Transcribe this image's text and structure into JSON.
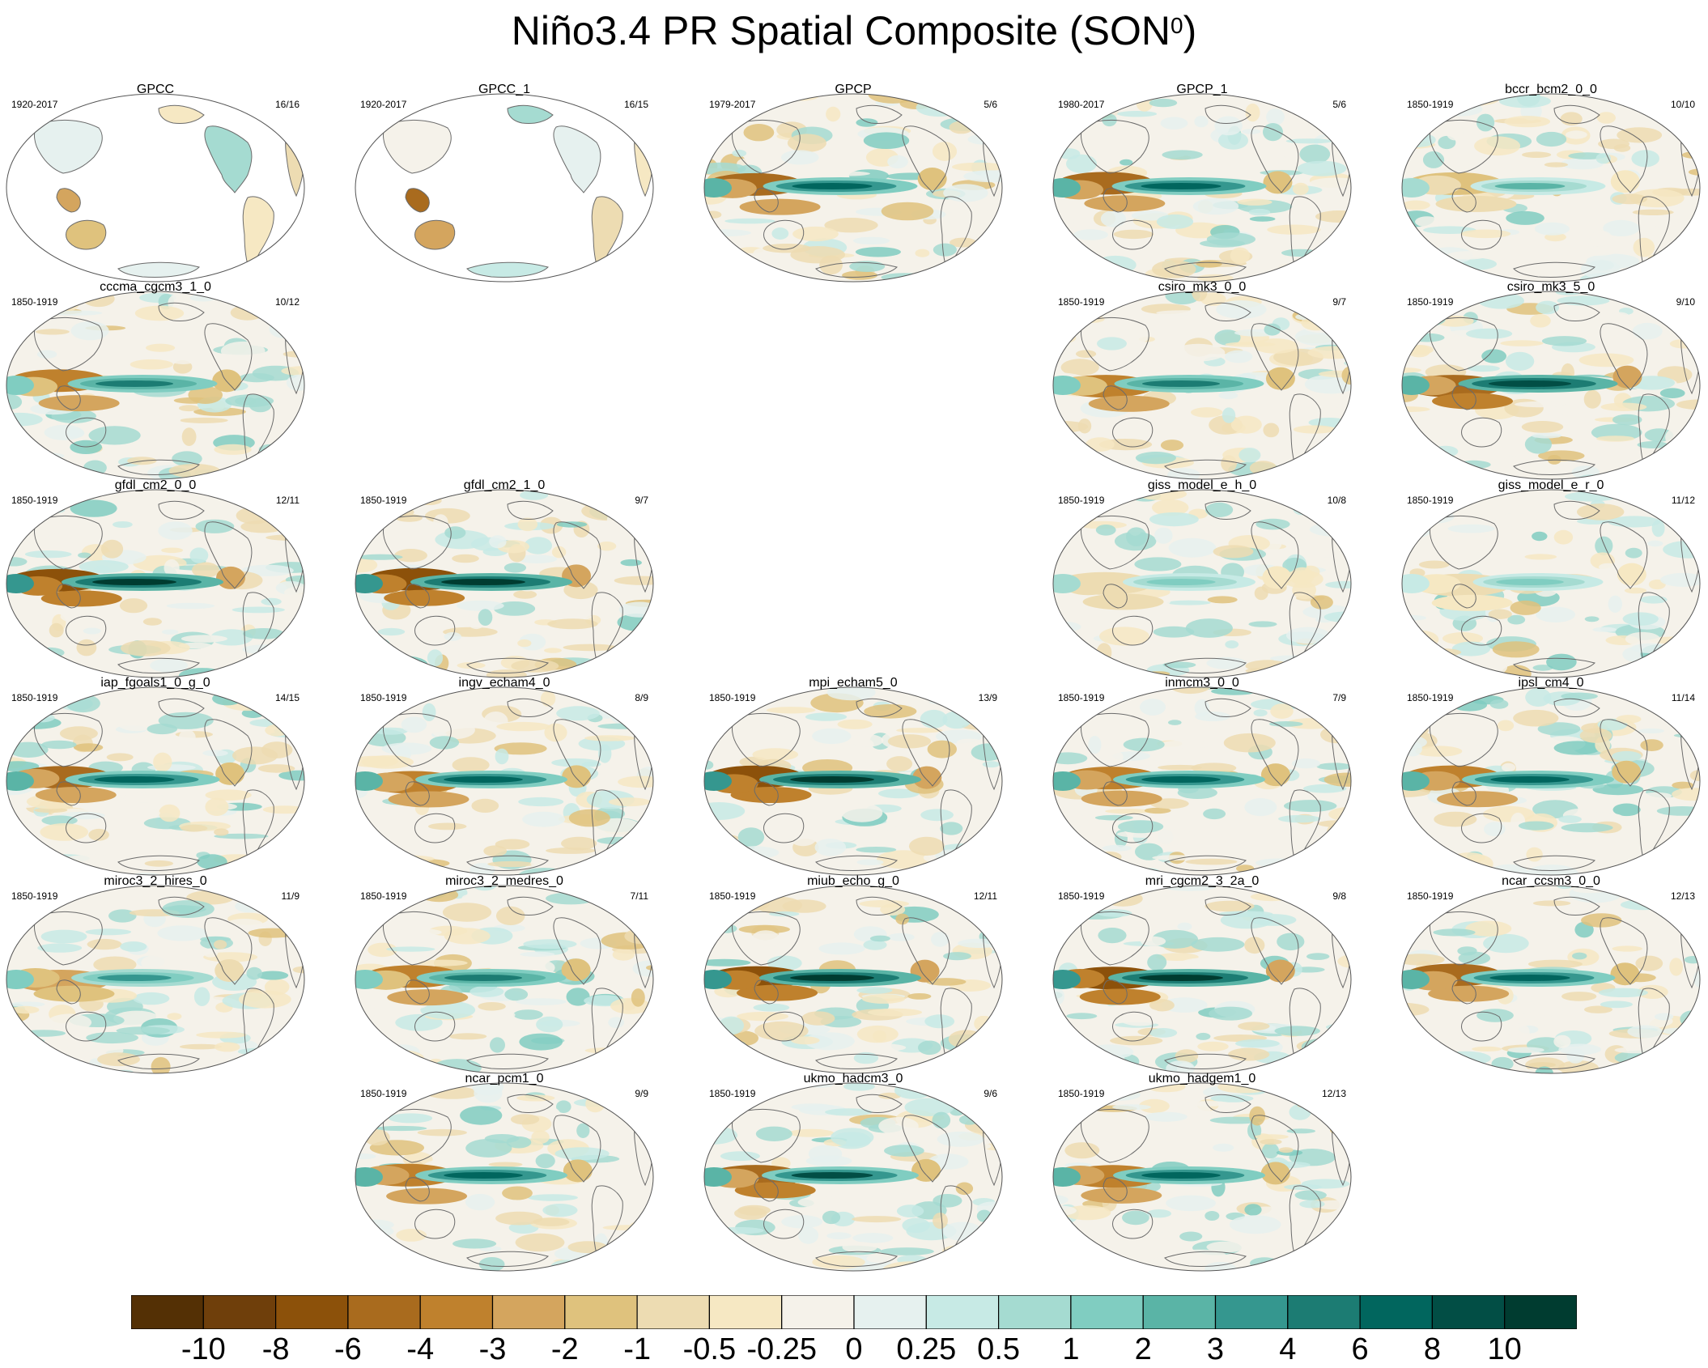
{
  "title": "Niño3.4 PR Spatial Composite (SON",
  "title_superscript": "0",
  "title_close": ")",
  "chart_data": {
    "type": "heatmap",
    "description_kind": "map-panel-grid",
    "colorbar": {
      "labels": [
        "-10",
        "-8",
        "-6",
        "-4",
        "-3",
        "-2",
        "-1",
        "-0.5",
        "-0.25",
        "0",
        "0.25",
        "0.5",
        "1",
        "2",
        "3",
        "4",
        "6",
        "8",
        "10"
      ],
      "colors": [
        "#543005",
        "#6f3f0b",
        "#8c510a",
        "#a96b1e",
        "#bf812d",
        "#d4a55e",
        "#dfc27d",
        "#eddcb2",
        "#f6e8c3",
        "#f5f2ea",
        "#e6f1ef",
        "#c7eae5",
        "#a5dbd1",
        "#80cdc1",
        "#5ab4a6",
        "#35978f",
        "#1c7c73",
        "#01665e",
        "#024e45",
        "#003c30"
      ]
    },
    "panels": [
      {
        "row": 0,
        "col": 0,
        "name": "GPCC",
        "period": "1920-2017",
        "count": "16/16",
        "coverage": "land",
        "strength": 0.35
      },
      {
        "row": 0,
        "col": 1,
        "name": "GPCC_1",
        "period": "1920-2017",
        "count": "16/15",
        "coverage": "land",
        "strength": 0.3
      },
      {
        "row": 0,
        "col": 2,
        "name": "GPCP",
        "period": "1979-2017",
        "count": "5/6",
        "coverage": "global",
        "strength": 0.85
      },
      {
        "row": 0,
        "col": 3,
        "name": "GPCP_1",
        "period": "1980-2017",
        "count": "5/6",
        "coverage": "global",
        "strength": 0.85
      },
      {
        "row": 0,
        "col": 4,
        "name": "bccr_bcm2_0_0",
        "period": "1850-1919",
        "count": "10/10",
        "coverage": "global",
        "strength": 0.45
      },
      {
        "row": 1,
        "col": 0,
        "name": "cccma_cgcm3_1_0",
        "period": "1850-1919",
        "count": "10/12",
        "coverage": "global",
        "strength": 0.75
      },
      {
        "row": 1,
        "col": 3,
        "name": "csiro_mk3_0_0",
        "period": "1850-1919",
        "count": "9/7",
        "coverage": "global",
        "strength": 0.75
      },
      {
        "row": 1,
        "col": 4,
        "name": "csiro_mk3_5_0",
        "period": "1850-1919",
        "count": "9/10",
        "coverage": "global",
        "strength": 0.95
      },
      {
        "row": 2,
        "col": 0,
        "name": "gfdl_cm2_0_0",
        "period": "1850-1919",
        "count": "12/11",
        "coverage": "global",
        "strength": 1.0
      },
      {
        "row": 2,
        "col": 1,
        "name": "gfdl_cm2_1_0",
        "period": "1850-1919",
        "count": "9/7",
        "coverage": "global",
        "strength": 1.0
      },
      {
        "row": 2,
        "col": 3,
        "name": "giss_model_e_h_0",
        "period": "1850-1919",
        "count": "10/8",
        "coverage": "global",
        "strength": 0.4
      },
      {
        "row": 2,
        "col": 4,
        "name": "giss_model_e_r_0",
        "period": "1850-1919",
        "count": "11/12",
        "coverage": "global",
        "strength": 0.35
      },
      {
        "row": 3,
        "col": 0,
        "name": "iap_fgoals1_0_g_0",
        "period": "1850-1919",
        "count": "14/15",
        "coverage": "global",
        "strength": 0.85
      },
      {
        "row": 3,
        "col": 1,
        "name": "ingv_echam4_0",
        "period": "1850-1919",
        "count": "8/9",
        "coverage": "global",
        "strength": 0.8
      },
      {
        "row": 3,
        "col": 2,
        "name": "mpi_echam5_0",
        "period": "1850-1919",
        "count": "13/9",
        "coverage": "global",
        "strength": 1.0
      },
      {
        "row": 3,
        "col": 3,
        "name": "inmcm3_0_0",
        "period": "1850-1919",
        "count": "7/9",
        "coverage": "global",
        "strength": 0.8
      },
      {
        "row": 3,
        "col": 4,
        "name": "ipsl_cm4_0",
        "period": "1850-1919",
        "count": "11/14",
        "coverage": "global",
        "strength": 0.8
      },
      {
        "row": 4,
        "col": 0,
        "name": "miroc3_2_hires_0",
        "period": "1850-1919",
        "count": "11/9",
        "coverage": "global",
        "strength": 0.6
      },
      {
        "row": 4,
        "col": 1,
        "name": "miroc3_2_medres_0",
        "period": "1850-1919",
        "count": "7/11",
        "coverage": "global",
        "strength": 0.75
      },
      {
        "row": 4,
        "col": 2,
        "name": "miub_echo_g_0",
        "period": "1850-1919",
        "count": "12/11",
        "coverage": "global",
        "strength": 1.0
      },
      {
        "row": 4,
        "col": 3,
        "name": "mri_cgcm2_3_2a_0",
        "period": "1850-1919",
        "count": "9/8",
        "coverage": "global",
        "strength": 1.0
      },
      {
        "row": 4,
        "col": 4,
        "name": "ncar_ccsm3_0_0",
        "period": "1850-1919",
        "count": "12/13",
        "coverage": "global",
        "strength": 0.85
      },
      {
        "row": 5,
        "col": 1,
        "name": "ncar_pcm1_0",
        "period": "1850-1919",
        "count": "9/9",
        "coverage": "global",
        "strength": 0.8
      },
      {
        "row": 5,
        "col": 2,
        "name": "ukmo_hadcm3_0",
        "period": "1850-1919",
        "count": "9/6",
        "coverage": "global",
        "strength": 0.9
      },
      {
        "row": 5,
        "col": 3,
        "name": "ukmo_hadgem1_0",
        "period": "1850-1919",
        "count": "12/13",
        "coverage": "global",
        "strength": 0.8
      }
    ]
  }
}
